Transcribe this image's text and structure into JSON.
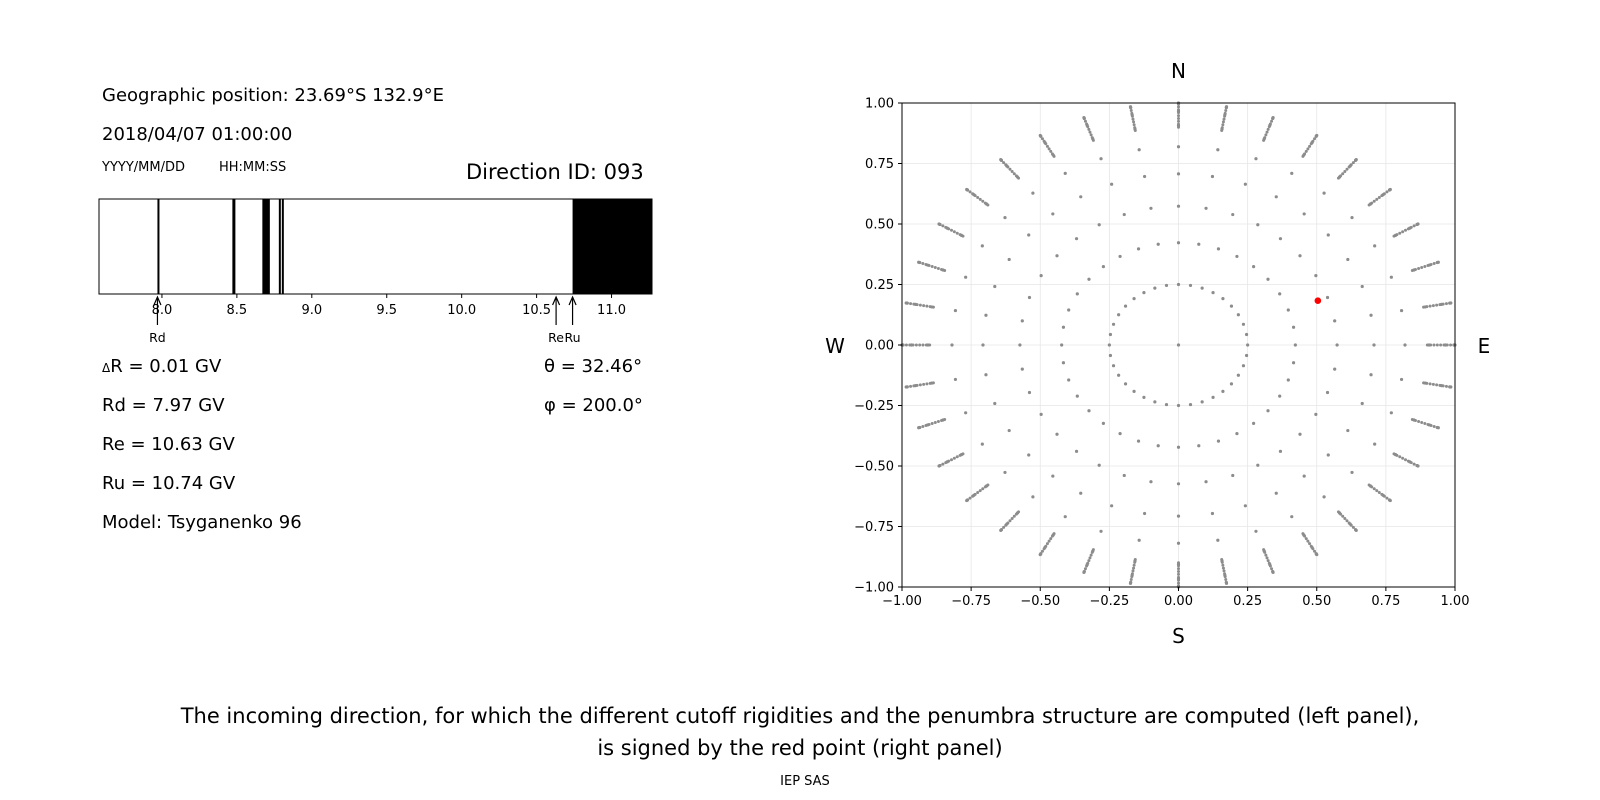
{
  "left_panel": {
    "geo_position": "Geographic position: 23.69°S 132.9°E",
    "datetime": "2018/04/07 01:00:00",
    "date_format": "YYYY/MM/DD",
    "time_format": "HH:MM:SS",
    "direction_id": "Direction ID: 093",
    "delta_r_symbol": "Δ",
    "delta_r": "R = 0.01 GV",
    "rd": "Rd = 7.97 GV",
    "re": "Re = 10.63 GV",
    "ru": "Ru = 10.74 GV",
    "model": "Model: Tsyganenko 96",
    "theta": "θ = 32.46°",
    "phi": "φ = 200.0°"
  },
  "caption_line1": "The incoming direction, for which the different cutoff rigidities and the penumbra structure are computed (left panel),",
  "caption_line2": "is signed by the red point (right panel)",
  "footer": "IEP SAS",
  "chart_data": [
    {
      "type": "heatmap",
      "name": "penumbra",
      "xlim": [
        7.58,
        11.27
      ],
      "xticks": [
        8.0,
        8.5,
        9.0,
        9.5,
        10.0,
        10.5,
        11.0
      ],
      "tick_labels": [
        "8.0",
        "8.5",
        "9.0",
        "9.5",
        "10.0",
        "10.5",
        "11.0"
      ],
      "forbidden_bands": [
        [
          7.97,
          7.98
        ],
        [
          8.47,
          8.49
        ],
        [
          8.67,
          8.72
        ],
        [
          8.78,
          8.79
        ],
        [
          8.8,
          8.81
        ],
        [
          10.74,
          11.27
        ]
      ],
      "markers": [
        {
          "label": "Rd",
          "value": 7.97
        },
        {
          "label": "Re",
          "value": 10.63
        },
        {
          "label": "Ru",
          "value": 10.74
        }
      ],
      "colors": {
        "allowed": "#ffffff",
        "forbidden": "#000000"
      }
    },
    {
      "type": "scatter",
      "name": "directions",
      "xlim": [
        -1.0,
        1.0
      ],
      "ylim": [
        -1.0,
        1.0
      ],
      "xticks": [
        -1.0,
        -0.75,
        -0.5,
        -0.25,
        0.0,
        0.25,
        0.5,
        0.75,
        1.0
      ],
      "yticks": [
        -1.0,
        -0.75,
        -0.5,
        -0.25,
        0.0,
        0.25,
        0.5,
        0.75,
        1.0
      ],
      "xtick_labels": [
        "−1.00",
        "−0.75",
        "−0.50",
        "−0.25",
        "0.00",
        "0.25",
        "0.50",
        "0.75",
        "1.00"
      ],
      "ytick_labels": [
        "−1.00",
        "−0.75",
        "−0.50",
        "−0.25",
        "0.00",
        "0.25",
        "0.50",
        "0.75",
        "1.00"
      ],
      "grid": true,
      "compass": {
        "top": "N",
        "bottom": "S",
        "left": "W",
        "right": "E"
      },
      "grid_radii": [
        0.25,
        0.4226,
        0.5736,
        0.7071,
        0.8192,
        0.9063,
        0.9659,
        0.9962,
        1.0
      ],
      "azimuth_step_deg": 10,
      "highlight": {
        "x": 0.504,
        "y": 0.183
      },
      "colors": {
        "points": "#8c8c8c",
        "highlight": "#ff0000"
      }
    }
  ]
}
